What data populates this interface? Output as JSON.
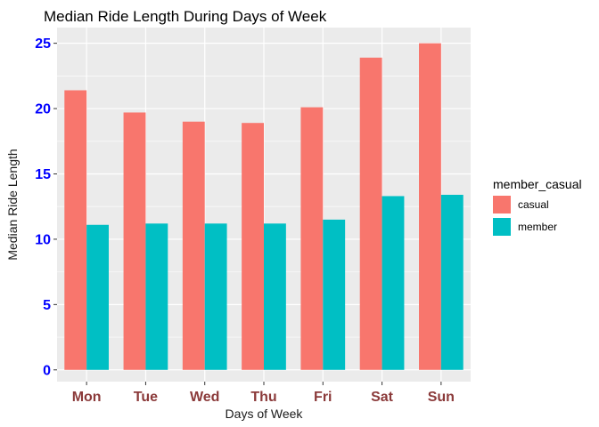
{
  "chart_data": {
    "type": "bar",
    "title": "Median Ride Length During Days of Week",
    "xlabel": "Days of Week",
    "ylabel": "Median Ride Length",
    "categories": [
      "Mon",
      "Tue",
      "Wed",
      "Thu",
      "Fri",
      "Sat",
      "Sun"
    ],
    "series": [
      {
        "name": "casual",
        "color": "#F8766D",
        "values": [
          21.4,
          19.7,
          19.0,
          18.9,
          20.1,
          23.9,
          25.0
        ]
      },
      {
        "name": "member",
        "color": "#00BFC4",
        "values": [
          11.1,
          11.2,
          11.2,
          11.2,
          11.5,
          13.3,
          13.4
        ]
      }
    ],
    "ylim": [
      -0.9,
      26.2
    ],
    "yticks": [
      0,
      5,
      10,
      15,
      20,
      25
    ],
    "grid": true,
    "legend": {
      "title": "member_casual",
      "placement": "right"
    },
    "colors": {
      "panel_background": "#EBEBEB",
      "grid": "#FFFFFF",
      "ytick_labels": "#0000FF",
      "xtick_labels": "#8B3A3A"
    }
  }
}
